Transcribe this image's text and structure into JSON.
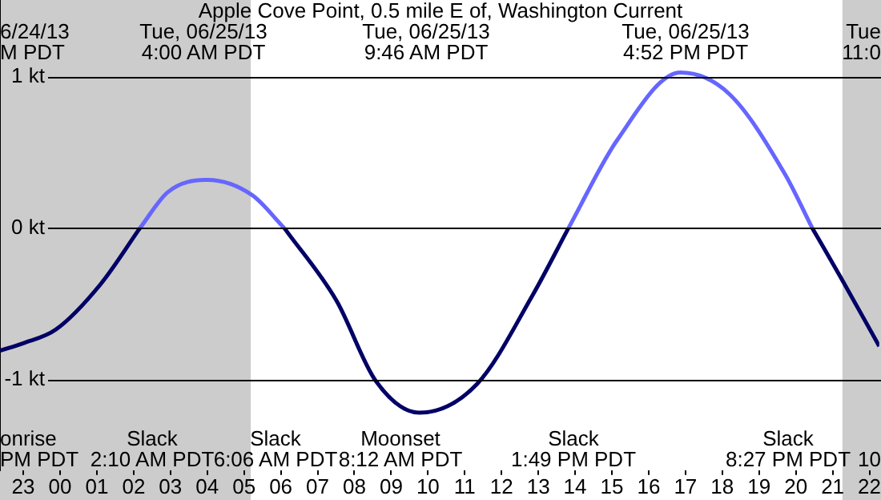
{
  "chart_data": {
    "type": "line",
    "title": "Apple Cove Point, 0.5 mile E of, Washington Current",
    "xlim": [
      "--06-24T22:22",
      "--06-25T22:16"
    ],
    "ylim": [
      -1.6,
      1.51
    ],
    "xticks": [
      {
        "value": "--06-24T23:00",
        "label": "23"
      },
      {
        "value": "--06-25T00:00",
        "label": "00"
      },
      {
        "value": "--06-25T01:00",
        "label": "01"
      },
      {
        "value": "--06-25T02:00",
        "label": "02"
      },
      {
        "value": "--06-25T03:00",
        "label": "03"
      },
      {
        "value": "--06-25T04:00",
        "label": "04"
      },
      {
        "value": "--06-25T05:00",
        "label": "05"
      },
      {
        "value": "--06-25T06:00",
        "label": "06"
      },
      {
        "value": "--06-25T07:00",
        "label": "07"
      },
      {
        "value": "--06-25T08:00",
        "label": "08"
      },
      {
        "value": "--06-25T09:00",
        "label": "09"
      },
      {
        "value": "--06-25T10:00",
        "label": "10"
      },
      {
        "value": "--06-25T11:00",
        "label": "11"
      },
      {
        "value": "--06-25T12:00",
        "label": "12"
      },
      {
        "value": "--06-25T13:00",
        "label": "13"
      },
      {
        "value": "--06-25T14:00",
        "label": "14"
      },
      {
        "value": "--06-25T15:00",
        "label": "15"
      },
      {
        "value": "--06-25T16:00",
        "label": "16"
      },
      {
        "value": "--06-25T17:00",
        "label": "17"
      },
      {
        "value": "--06-25T18:00",
        "label": "18"
      },
      {
        "value": "--06-25T19:00",
        "label": "19"
      },
      {
        "value": "--06-25T20:00",
        "label": "20"
      },
      {
        "value": "--06-25T21:00",
        "label": "21"
      },
      {
        "value": "--06-25T22:00",
        "label": "22"
      }
    ],
    "yticks": [
      {
        "value": -1,
        "label": "-1 kt"
      },
      {
        "value": 0,
        "label": "0 kt"
      },
      {
        "value": 1,
        "label": "1 kt"
      }
    ],
    "grid": "y",
    "legend": false,
    "marker": "none",
    "line_style": "solid",
    "series": [
      {
        "color": "#000066",
        "x": [
          "--06-24T22:22",
          "--06-24T23:00",
          "--06-24T23:53",
          "--06-25T01:06",
          "--06-25T02:10",
          "--06-25T04:00",
          "--06-25T06:06",
          "--06-25T07:31",
          "--06-25T08:35",
          "--06-25T09:46",
          "--06-25T11:20",
          "--06-25T12:51",
          "--06-25T13:49",
          "--06-25T17:00",
          "--06-25T20:27",
          "--06-25T21:14",
          "--06-25T22:16"
        ],
        "values": [
          -0.81,
          -0.76,
          -0.67,
          -0.37,
          0,
          null,
          0,
          -0.48,
          -1.01,
          -1.22,
          -1.03,
          -0.44,
          0,
          null,
          0,
          -0.33,
          -0.78
        ]
      },
      {
        "color": "#6666ff",
        "x": [
          "--06-25T02:10",
          "--06-25T02:56",
          "--06-25T04:00",
          "--06-25T05:13",
          "--06-25T06:06",
          "--06-25T09:46",
          "--06-25T13:49",
          "--06-25T15:08",
          "--06-25T16:52",
          "--06-25T18:11",
          "--06-25T19:42",
          "--06-25T20:27"
        ],
        "values": [
          0,
          0.24,
          0.32,
          0.22,
          0,
          null,
          0,
          0.58,
          1.03,
          0.89,
          0.36,
          0
        ]
      }
    ],
    "bands": [
      {
        "axis": "x",
        "from": "--06-24T22:22",
        "to": "--06-25T05:11",
        "color": "#cccccc"
      },
      {
        "axis": "x",
        "from": "--06-25T21:16",
        "to": "--06-25T22:16",
        "color": "#cccccc"
      }
    ],
    "annotations": [
      "6/24/13\nM PDT",
      "Tue\n11:0",
      "onrise\nPM PDT",
      "10",
      "Tue, 06/25/13\n4:00 AM PDT",
      "Tue, 06/25/13\n9:46 AM PDT",
      "Tue, 06/25/13\n4:52 PM PDT",
      "Slack\n2:10 AM PDT",
      "Slack\n6:06 AM PDT",
      "Moonset\n8:12 AM PDT",
      "Slack\n1:49 PM PDT",
      "Slack\n8:27 PM PDT"
    ]
  }
}
